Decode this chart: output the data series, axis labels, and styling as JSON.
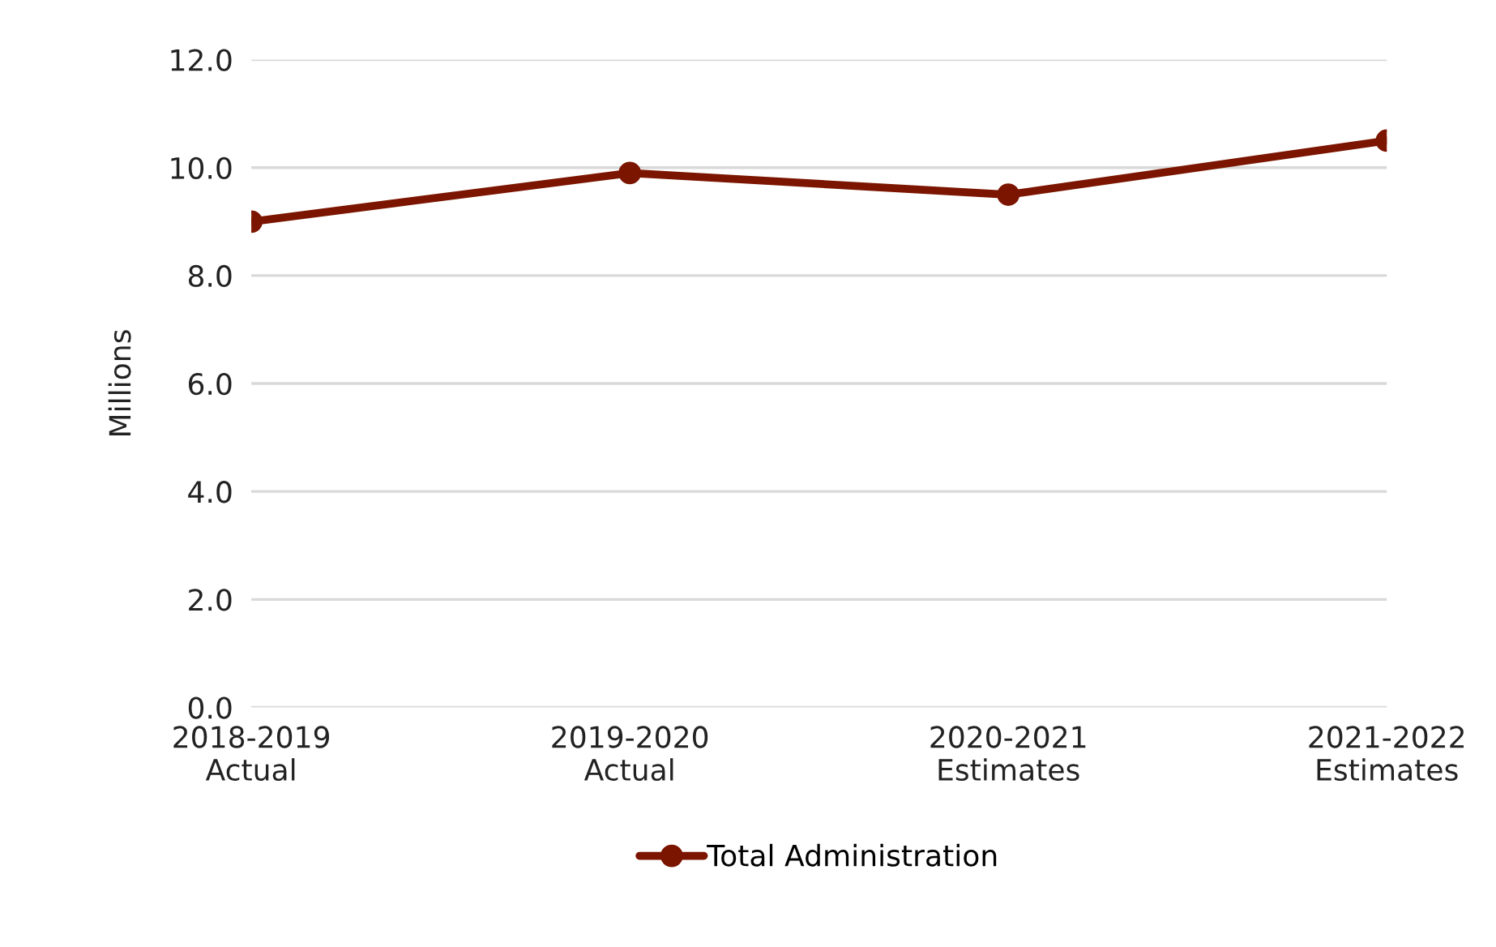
{
  "chart_data": {
    "type": "line",
    "ylabel": "Millions",
    "categories": [
      "2018-2019\nActual",
      "2019-2020\nActual",
      "2020-2021\nEstimates",
      "2021-2022\nEstimates"
    ],
    "series": [
      {
        "name": "Total Administration",
        "color": "#7b1500",
        "values": [
          9.0,
          9.9,
          9.5,
          10.5
        ]
      }
    ],
    "ylim": [
      0,
      12
    ],
    "yticks": [
      {
        "value": 0,
        "label": "0.0"
      },
      {
        "value": 2,
        "label": "2.0"
      },
      {
        "value": 4,
        "label": "4.0"
      },
      {
        "value": 6,
        "label": "6.0"
      },
      {
        "value": 8,
        "label": "8.0"
      },
      {
        "value": 10,
        "label": "10.0"
      },
      {
        "value": 12,
        "label": "12.0"
      }
    ],
    "grid": "y",
    "legend": "bottom",
    "marker": "circle",
    "line_style": "solid"
  }
}
